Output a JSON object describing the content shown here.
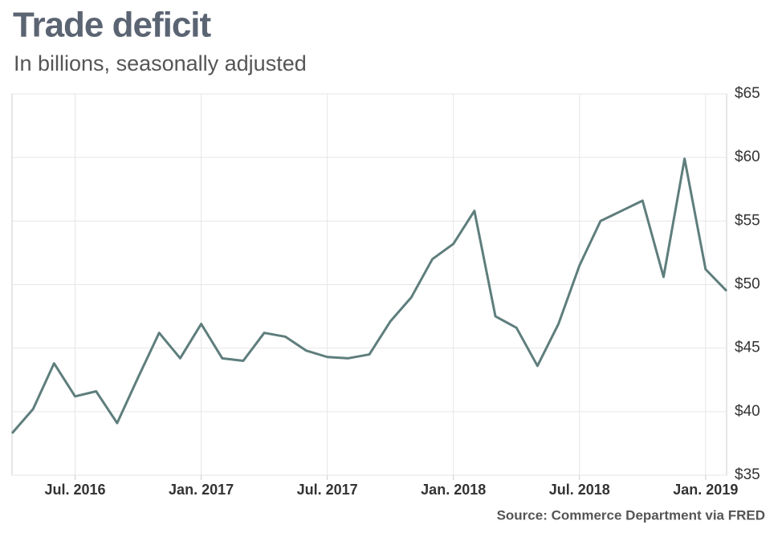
{
  "chart_data": {
    "type": "line",
    "title": "Trade deficit",
    "subtitle": "In billions, seasonally adjusted",
    "source": "Source: Commerce Department via FRED",
    "x": [
      "2016-04",
      "2016-05",
      "2016-06",
      "2016-07",
      "2016-08",
      "2016-09",
      "2016-10",
      "2016-11",
      "2016-12",
      "2017-01",
      "2017-02",
      "2017-03",
      "2017-04",
      "2017-05",
      "2017-06",
      "2017-07",
      "2017-08",
      "2017-09",
      "2017-10",
      "2017-11",
      "2017-12",
      "2018-01",
      "2018-02",
      "2018-03",
      "2018-04",
      "2018-05",
      "2018-06",
      "2018-07",
      "2018-08",
      "2018-09",
      "2018-10",
      "2018-11",
      "2018-12",
      "2019-01",
      "2019-02"
    ],
    "series": [
      {
        "name": "Trade deficit",
        "color": "#5e7e7c",
        "values": [
          38.3,
          40.2,
          43.8,
          41.2,
          41.6,
          39.1,
          42.7,
          46.2,
          44.2,
          46.9,
          44.2,
          44.0,
          46.2,
          45.9,
          44.8,
          44.3,
          44.2,
          44.5,
          47.1,
          49.0,
          52.0,
          53.2,
          55.8,
          47.5,
          46.6,
          43.6,
          46.9,
          51.5,
          55.0,
          55.8,
          56.6,
          50.6,
          59.9,
          51.2,
          49.5
        ]
      }
    ],
    "xlim": [
      "2016-04",
      "2019-02"
    ],
    "xticks": [
      {
        "value": "2016-07",
        "label": "Jul. 2016"
      },
      {
        "value": "2017-01",
        "label": "Jan. 2017"
      },
      {
        "value": "2017-07",
        "label": "Jul. 2017"
      },
      {
        "value": "2018-01",
        "label": "Jan. 2018"
      },
      {
        "value": "2018-07",
        "label": "Jul. 2018"
      },
      {
        "value": "2019-01",
        "label": "Jan. 2019"
      }
    ],
    "ylim": [
      35,
      65
    ],
    "yticks": [
      {
        "value": 35,
        "label": "$35"
      },
      {
        "value": 40,
        "label": "$40"
      },
      {
        "value": 45,
        "label": "$45"
      },
      {
        "value": 50,
        "label": "$50"
      },
      {
        "value": 55,
        "label": "$55"
      },
      {
        "value": 60,
        "label": "$60"
      },
      {
        "value": 65,
        "label": "$65"
      }
    ],
    "grid": true
  }
}
